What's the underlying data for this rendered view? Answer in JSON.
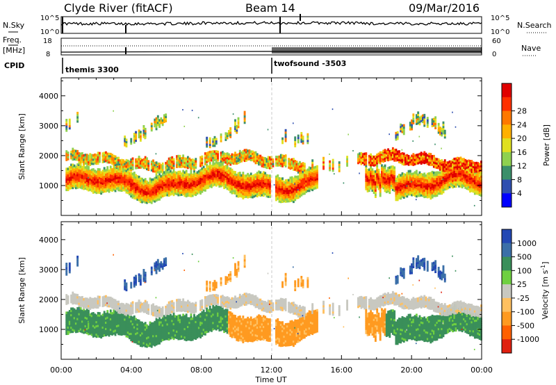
{
  "header": {
    "station_title": "Clyde River (fitACF)",
    "beam": "Beam 14",
    "date": "09/Mar/2016"
  },
  "info_panels": {
    "nsky_label": "N.Sky",
    "nsky_ticks": [
      "10^5",
      "10^0"
    ],
    "nsearch_label": "N.Search",
    "nsearch_ticks": [
      "10^5",
      "10^0"
    ],
    "freq_label_line1": "Freq.",
    "freq_label_line2": "[MHz]",
    "freq_ticks": [
      "18",
      "8"
    ],
    "nave_label": "Nave",
    "nave_ticks": [
      "60",
      "0"
    ],
    "cpid_label": "CPID",
    "cpid_segments": [
      {
        "name": "themis 3300",
        "start_hour": 0
      },
      {
        "name": "twofsound -3503",
        "start_hour": 12.0
      }
    ]
  },
  "colors": {
    "power_scale": [
      "#0000ff",
      "#2f4fb0",
      "#3b8f6a",
      "#8fd14f",
      "#e0e020",
      "#ffb000",
      "#ff7800",
      "#ff3000",
      "#e00000"
    ],
    "velocity_scale": [
      "#2348b4",
      "#3b6fa8",
      "#3a8f5a",
      "#6fd040",
      "#c8c8c0",
      "#ffc060",
      "#ff9a20",
      "#ff6000",
      "#e02010"
    ]
  },
  "chart_data": [
    {
      "type": "heatmap",
      "name": "power",
      "xlabel": "",
      "ylabel": "Slant Range [km]",
      "xlim": [
        0,
        24
      ],
      "ylim": [
        0,
        4600
      ],
      "yticks": [
        1000,
        2000,
        3000,
        4000
      ],
      "colorbar_label": "Power [dB]",
      "colorbar_ticks": [
        4,
        8,
        12,
        16,
        20,
        24,
        28
      ],
      "colorbar_range": [
        0,
        30
      ]
    },
    {
      "type": "heatmap",
      "name": "velocity",
      "xlabel": "Time UT",
      "ylabel": "Slant Range [km]",
      "xlim": [
        0,
        24
      ],
      "ylim": [
        0,
        4600
      ],
      "xticks": [
        "00:00",
        "04:00",
        "08:00",
        "12:00",
        "16:00",
        "20:00",
        "00:00"
      ],
      "yticks": [
        1000,
        2000,
        3000,
        4000
      ],
      "colorbar_label": "Velocity [m s",
      "colorbar_unit_sup": "-1",
      "colorbar_unit_close": "]",
      "colorbar_ticks": [
        "1000",
        "500",
        "100",
        "25",
        "-25",
        "-100",
        "-500",
        "-1000"
      ]
    }
  ]
}
